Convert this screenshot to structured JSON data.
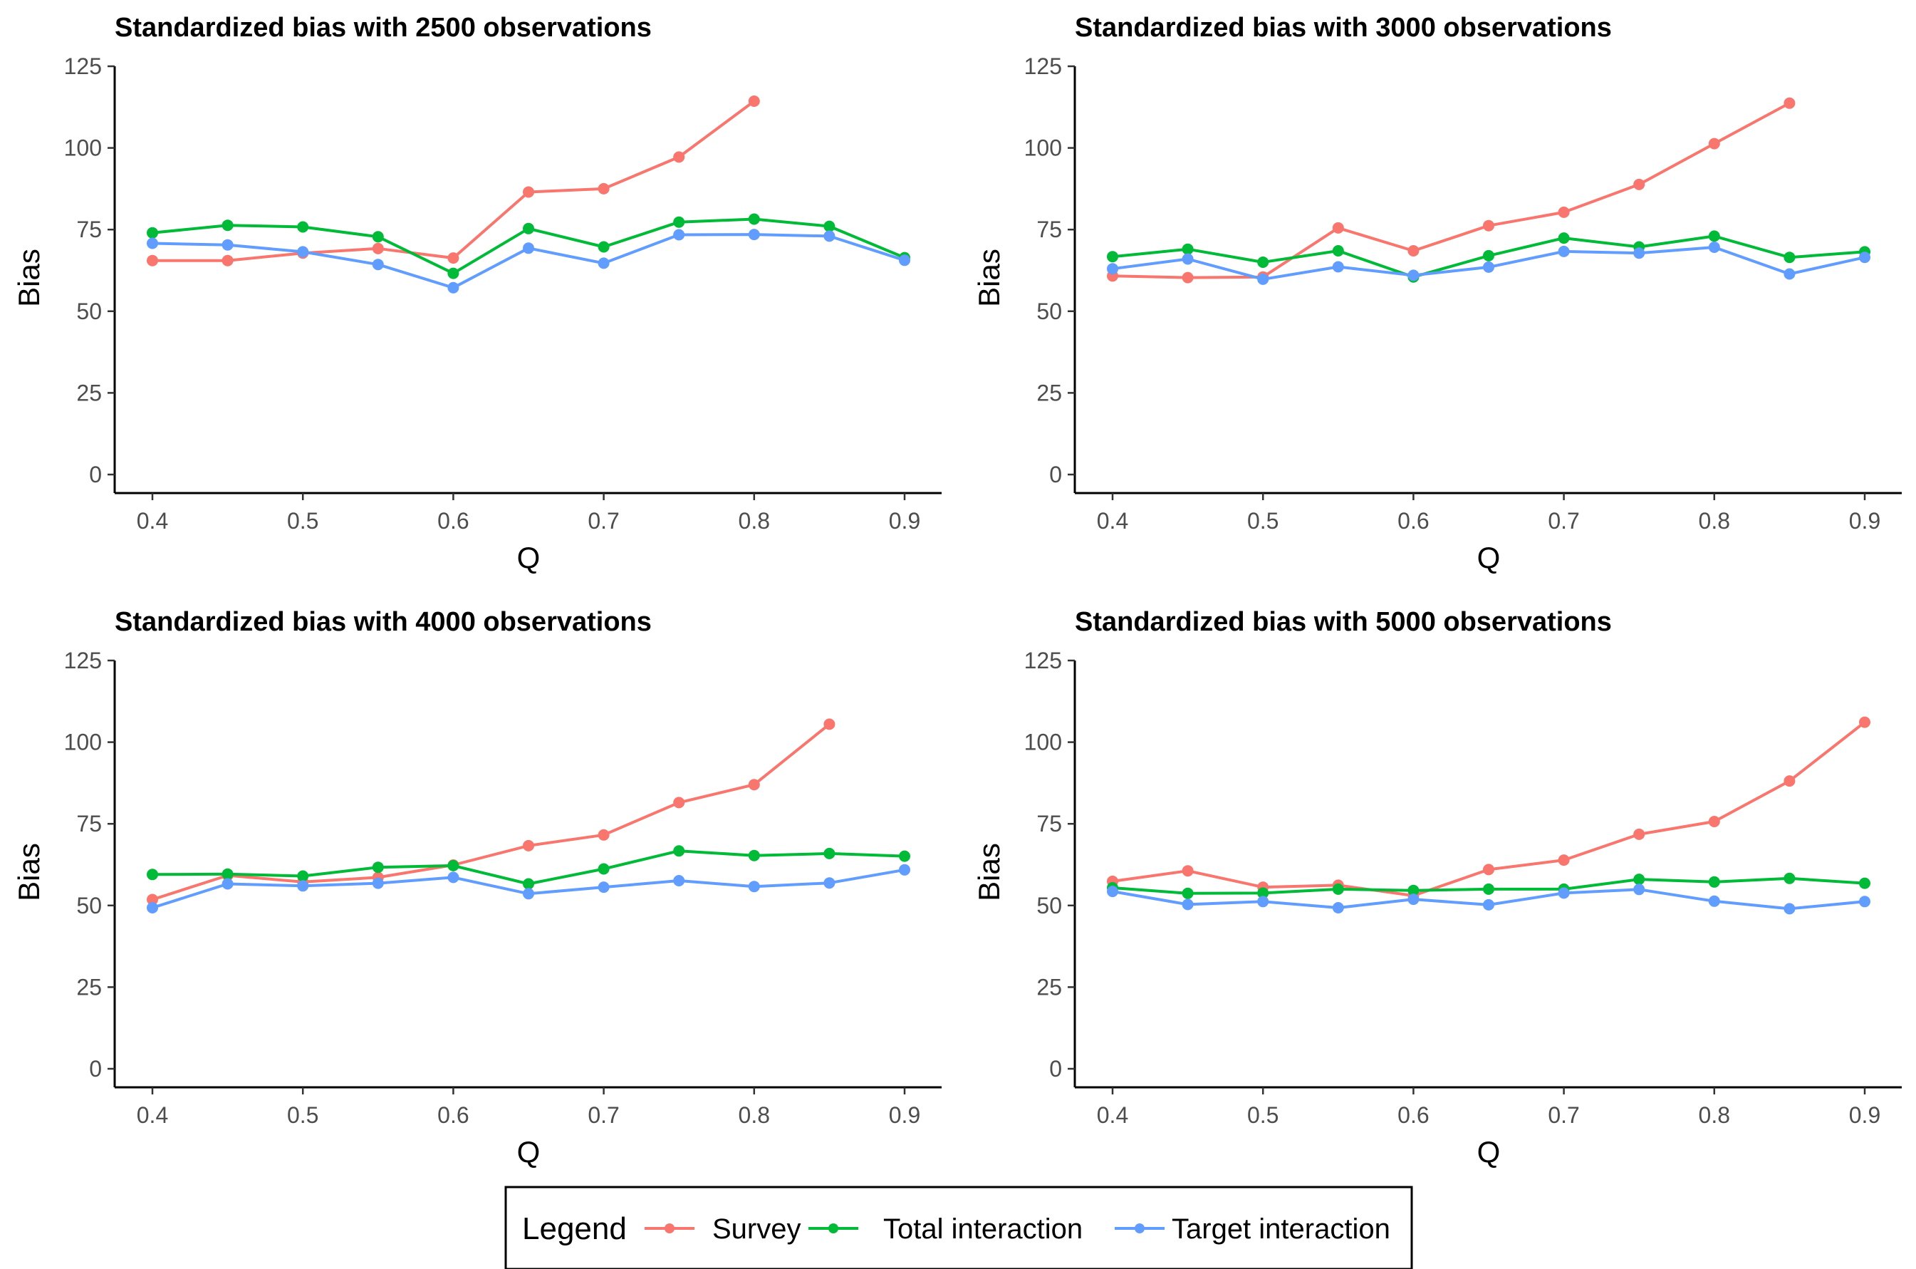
{
  "colors": {
    "survey": "#F8766D",
    "total_interaction": "#00BA38",
    "target_interaction": "#619CFF"
  },
  "legend": {
    "title": "Legend",
    "placement": "bottom",
    "entries": [
      "Survey",
      "Total interaction",
      "Target interaction"
    ]
  },
  "chart_data": [
    {
      "type": "line",
      "title": "Standardized bias with 2500 observations",
      "xlabel": "Q",
      "ylabel": "Bias",
      "xlim": [
        0.4,
        0.9
      ],
      "ylim": [
        0,
        125
      ],
      "x_ticks": [
        "0.4",
        "0.5",
        "0.6",
        "0.7",
        "0.8",
        "0.9"
      ],
      "y_ticks": [
        "0",
        "25",
        "50",
        "75",
        "100",
        "125"
      ],
      "grid": false,
      "series": [
        {
          "name": "Survey",
          "x": [
            0.4,
            0.45,
            0.5,
            0.55,
            0.6,
            0.65,
            0.7,
            0.75,
            0.8
          ],
          "values": [
            65.5,
            65.5,
            67.8,
            69.2,
            66.3,
            86.5,
            87.5,
            97.2,
            114.3
          ]
        },
        {
          "name": "Total interaction",
          "x": [
            0.4,
            0.45,
            0.5,
            0.55,
            0.6,
            0.65,
            0.7,
            0.75,
            0.8,
            0.85,
            0.9
          ],
          "values": [
            74.0,
            76.3,
            75.8,
            72.8,
            61.6,
            75.3,
            69.7,
            77.3,
            78.2,
            76.0,
            66.4
          ]
        },
        {
          "name": "Target interaction",
          "x": [
            0.4,
            0.45,
            0.5,
            0.55,
            0.6,
            0.65,
            0.7,
            0.75,
            0.8,
            0.85,
            0.9
          ],
          "values": [
            70.8,
            70.3,
            68.2,
            64.3,
            57.2,
            69.3,
            64.7,
            73.4,
            73.5,
            73.0,
            65.6
          ]
        }
      ]
    },
    {
      "type": "line",
      "title": "Standardized bias with 3000 observations",
      "xlabel": "Q",
      "ylabel": "Bias",
      "xlim": [
        0.4,
        0.9
      ],
      "ylim": [
        0,
        125
      ],
      "x_ticks": [
        "0.4",
        "0.5",
        "0.6",
        "0.7",
        "0.8",
        "0.9"
      ],
      "y_ticks": [
        "0",
        "25",
        "50",
        "75",
        "100",
        "125"
      ],
      "grid": false,
      "series": [
        {
          "name": "Survey",
          "x": [
            0.4,
            0.45,
            0.5,
            0.55,
            0.6,
            0.65,
            0.7,
            0.75,
            0.8,
            0.85
          ],
          "values": [
            60.8,
            60.3,
            60.5,
            75.5,
            68.5,
            76.2,
            80.3,
            88.8,
            101.3,
            113.7
          ]
        },
        {
          "name": "Total interaction",
          "x": [
            0.4,
            0.45,
            0.5,
            0.55,
            0.6,
            0.65,
            0.7,
            0.75,
            0.8,
            0.85,
            0.9
          ],
          "values": [
            66.7,
            69.0,
            65.0,
            68.5,
            60.5,
            67.0,
            72.4,
            69.7,
            73.0,
            66.5,
            68.2
          ]
        },
        {
          "name": "Target interaction",
          "x": [
            0.4,
            0.45,
            0.5,
            0.55,
            0.6,
            0.65,
            0.7,
            0.75,
            0.8,
            0.85,
            0.9
          ],
          "values": [
            63.0,
            66.0,
            59.8,
            63.6,
            61.0,
            63.5,
            68.3,
            67.8,
            69.6,
            61.4,
            66.5
          ]
        }
      ]
    },
    {
      "type": "line",
      "title": "Standardized bias with 4000 observations",
      "xlabel": "Q",
      "ylabel": "Bias",
      "xlim": [
        0.4,
        0.9
      ],
      "ylim": [
        0,
        125
      ],
      "x_ticks": [
        "0.4",
        "0.5",
        "0.6",
        "0.7",
        "0.8",
        "0.9"
      ],
      "y_ticks": [
        "0",
        "25",
        "50",
        "75",
        "100",
        "125"
      ],
      "grid": false,
      "series": [
        {
          "name": "Survey",
          "x": [
            0.4,
            0.45,
            0.5,
            0.55,
            0.6,
            0.65,
            0.7,
            0.75,
            0.8,
            0.85
          ],
          "values": [
            51.8,
            59.2,
            57.2,
            58.6,
            62.4,
            68.3,
            71.6,
            81.5,
            87.0,
            105.5
          ]
        },
        {
          "name": "Total interaction",
          "x": [
            0.4,
            0.45,
            0.5,
            0.55,
            0.6,
            0.65,
            0.7,
            0.75,
            0.8,
            0.85,
            0.9
          ],
          "values": [
            59.5,
            59.6,
            59.0,
            61.7,
            62.2,
            56.6,
            61.2,
            66.7,
            65.3,
            65.9,
            65.1
          ]
        },
        {
          "name": "Target interaction",
          "x": [
            0.4,
            0.45,
            0.5,
            0.55,
            0.6,
            0.65,
            0.7,
            0.75,
            0.8,
            0.85,
            0.9
          ],
          "values": [
            49.3,
            56.6,
            56.0,
            56.8,
            58.6,
            53.6,
            55.6,
            57.6,
            55.8,
            56.9,
            60.9
          ]
        }
      ]
    },
    {
      "type": "line",
      "title": "Standardized bias with 5000 observations",
      "xlabel": "Q",
      "ylabel": "Bias",
      "xlim": [
        0.4,
        0.9
      ],
      "ylim": [
        0,
        125
      ],
      "x_ticks": [
        "0.4",
        "0.5",
        "0.6",
        "0.7",
        "0.8",
        "0.9"
      ],
      "y_ticks": [
        "0",
        "25",
        "50",
        "75",
        "100",
        "125"
      ],
      "grid": false,
      "series": [
        {
          "name": "Survey",
          "x": [
            0.4,
            0.45,
            0.5,
            0.55,
            0.6,
            0.65,
            0.7,
            0.75,
            0.8,
            0.85,
            0.9
          ],
          "values": [
            57.4,
            60.6,
            55.6,
            56.2,
            53.0,
            61.0,
            63.9,
            71.8,
            75.7,
            88.1,
            106.1
          ]
        },
        {
          "name": "Total interaction",
          "x": [
            0.4,
            0.45,
            0.5,
            0.55,
            0.6,
            0.65,
            0.7,
            0.75,
            0.8,
            0.85,
            0.9
          ],
          "values": [
            55.4,
            53.7,
            53.8,
            55.0,
            54.6,
            55.0,
            55.0,
            58.0,
            57.2,
            58.3,
            56.8
          ]
        },
        {
          "name": "Target interaction",
          "x": [
            0.4,
            0.45,
            0.5,
            0.55,
            0.6,
            0.65,
            0.7,
            0.75,
            0.8,
            0.85,
            0.9
          ],
          "values": [
            54.3,
            50.3,
            51.2,
            49.3,
            51.9,
            50.2,
            53.8,
            54.9,
            51.3,
            49.0,
            51.2
          ]
        }
      ]
    }
  ]
}
